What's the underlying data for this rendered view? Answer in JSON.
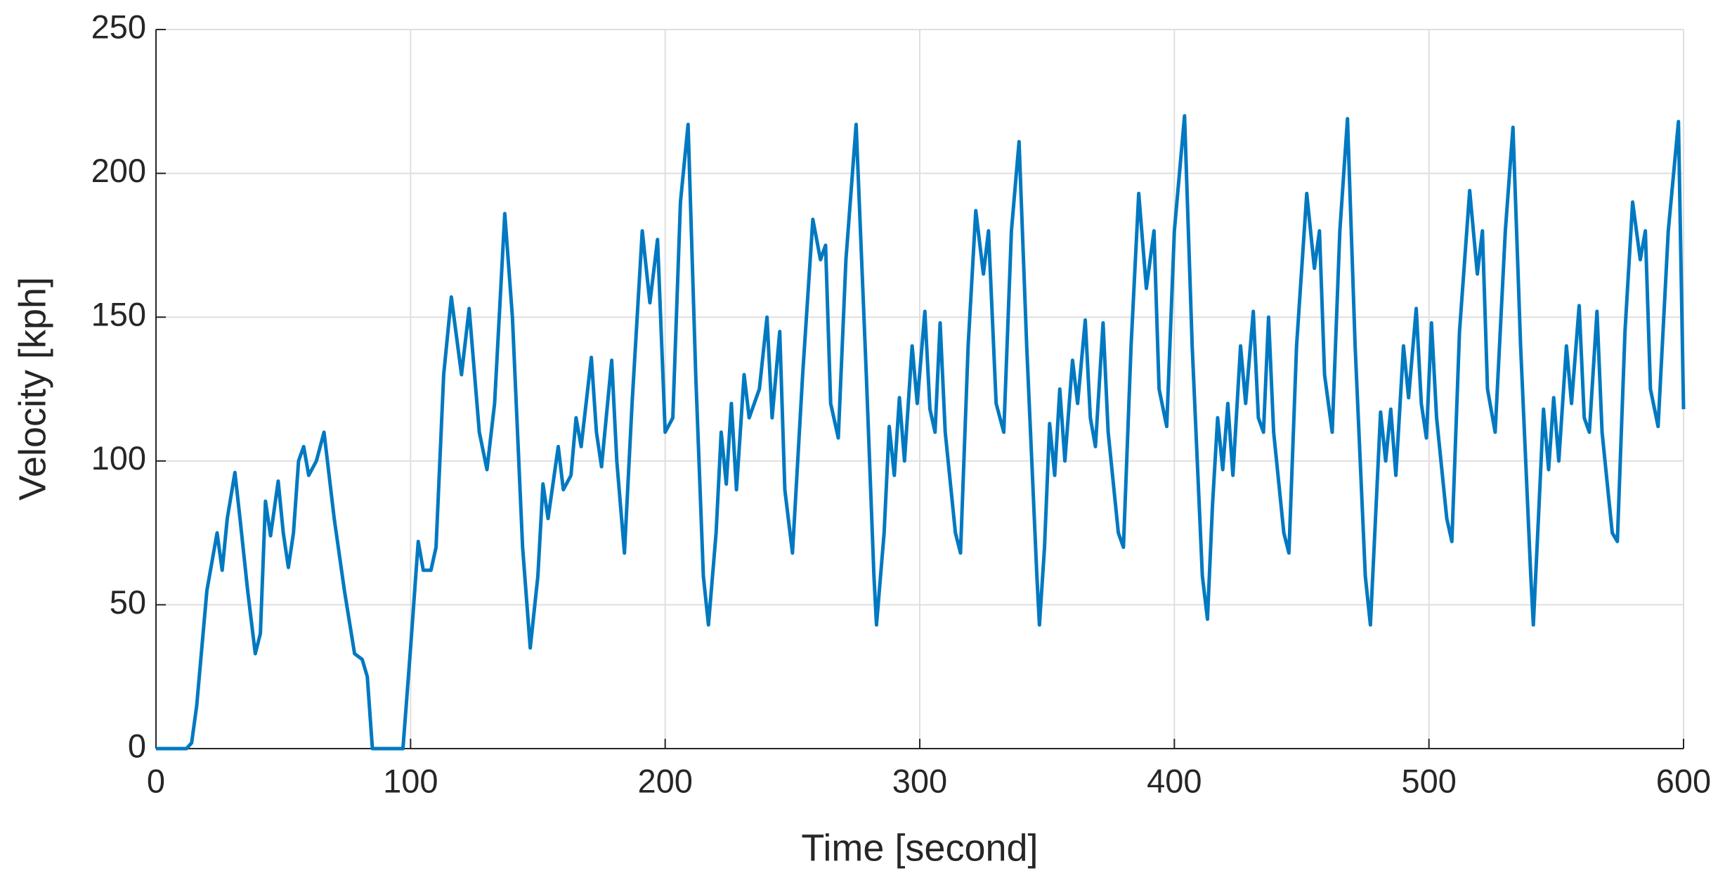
{
  "chart_data": {
    "type": "line",
    "xlabel": "Time [second]",
    "ylabel": "Velocity [kph]",
    "xlim": [
      0,
      600
    ],
    "ylim": [
      0,
      250
    ],
    "xticks": [
      0,
      100,
      200,
      300,
      400,
      500,
      600
    ],
    "yticks": [
      0,
      50,
      100,
      150,
      200,
      250
    ],
    "grid": true,
    "series": [
      {
        "name": "Velocity",
        "color": "#0079c1",
        "x": [
          0,
          12,
          14,
          16,
          18,
          20,
          22,
          24,
          26,
          28,
          31,
          33,
          36,
          39,
          41,
          43,
          45,
          48,
          50,
          52,
          54,
          56,
          58,
          60,
          63,
          66,
          70,
          74,
          78,
          81,
          83,
          85,
          97,
          100,
          103,
          105,
          108,
          110,
          113,
          116,
          120,
          123,
          127,
          130,
          133,
          137,
          140,
          144,
          147,
          150,
          152,
          154,
          158,
          160,
          163,
          165,
          167,
          171,
          173,
          175,
          179,
          181,
          184,
          187,
          191,
          194,
          197,
          200,
          203,
          206,
          209,
          212,
          215,
          217,
          220,
          222,
          224,
          226,
          228,
          231,
          233,
          237,
          240,
          242,
          245,
          247,
          250,
          254,
          258,
          261,
          263,
          265,
          268,
          271,
          275,
          279,
          282,
          283,
          286,
          288,
          290,
          292,
          294,
          297,
          299,
          302,
          304,
          306,
          308,
          310,
          314,
          316,
          319,
          322,
          325,
          327,
          330,
          333,
          336,
          339,
          342,
          346,
          347,
          349,
          351,
          353,
          355,
          357,
          360,
          362,
          365,
          367,
          369,
          372,
          374,
          378,
          380,
          383,
          386,
          389,
          392,
          394,
          397,
          400,
          404,
          407,
          411,
          413,
          415,
          417,
          419,
          421,
          423,
          426,
          428,
          431,
          433,
          435,
          437,
          439,
          443,
          445,
          448,
          452,
          455,
          457,
          459,
          462,
          465,
          468,
          471,
          475,
          477,
          479,
          481,
          483,
          485,
          487,
          490,
          492,
          495,
          497,
          499,
          501,
          503,
          507,
          509,
          512,
          516,
          519,
          521,
          523,
          526,
          530,
          533,
          536,
          540,
          541,
          543,
          545,
          547,
          549,
          551,
          554,
          556,
          559,
          561,
          563,
          566,
          568,
          572,
          574,
          577,
          580,
          583,
          585,
          587,
          590,
          594,
          598,
          600
        ],
        "values": [
          0,
          0,
          2,
          15,
          35,
          55,
          65,
          75,
          62,
          80,
          96,
          80,
          55,
          33,
          40,
          86,
          74,
          93,
          75,
          63,
          75,
          100,
          105,
          95,
          100,
          110,
          80,
          55,
          33,
          31,
          25,
          0,
          0,
          35,
          72,
          62,
          62,
          70,
          130,
          157,
          130,
          153,
          110,
          97,
          120,
          186,
          150,
          70,
          35,
          60,
          92,
          80,
          105,
          90,
          95,
          115,
          105,
          136,
          110,
          98,
          135,
          100,
          68,
          120,
          180,
          155,
          177,
          110,
          115,
          190,
          217,
          130,
          60,
          43,
          75,
          110,
          92,
          120,
          90,
          130,
          115,
          125,
          150,
          115,
          145,
          90,
          68,
          130,
          184,
          170,
          175,
          120,
          108,
          170,
          217,
          130,
          60,
          43,
          75,
          112,
          95,
          122,
          100,
          140,
          120,
          152,
          118,
          110,
          148,
          110,
          75,
          68,
          140,
          187,
          165,
          180,
          120,
          110,
          180,
          211,
          140,
          60,
          43,
          70,
          113,
          95,
          125,
          100,
          135,
          120,
          149,
          115,
          105,
          148,
          110,
          75,
          70,
          140,
          193,
          160,
          180,
          125,
          112,
          180,
          220,
          140,
          60,
          45,
          85,
          115,
          97,
          120,
          95,
          140,
          120,
          152,
          115,
          110,
          150,
          110,
          75,
          68,
          140,
          193,
          167,
          180,
          130,
          110,
          180,
          219,
          140,
          60,
          43,
          80,
          117,
          100,
          118,
          95,
          140,
          122,
          153,
          120,
          108,
          148,
          115,
          80,
          72,
          145,
          194,
          165,
          180,
          125,
          110,
          180,
          216,
          140,
          60,
          43,
          80,
          118,
          97,
          122,
          100,
          140,
          120,
          154,
          115,
          110,
          152,
          110,
          75,
          72,
          145,
          190,
          170,
          180,
          125,
          112,
          180,
          218,
          118
        ]
      }
    ]
  }
}
